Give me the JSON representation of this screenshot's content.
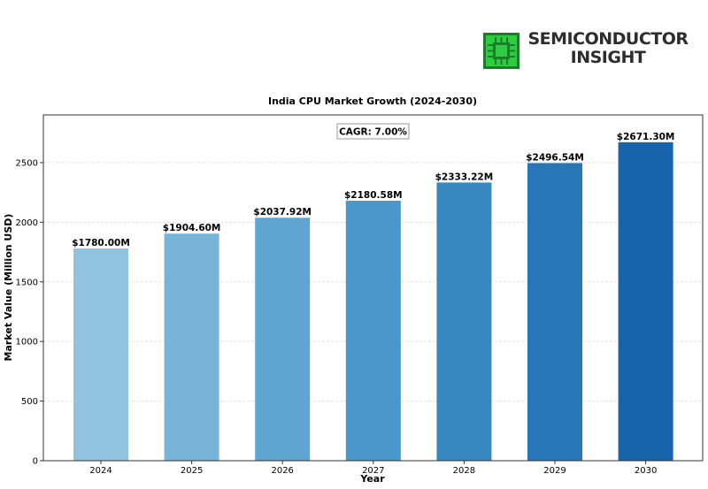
{
  "brand": {
    "line1": "SEMICONDUCTOR",
    "line2": "INSIGHT",
    "mark_icon": "chip-icon",
    "mark_color": "#2ecc40"
  },
  "chart_data": {
    "type": "bar",
    "title": "India CPU Market Growth (2024-2030)",
    "xlabel": "Year",
    "ylabel": "Market Value (Million USD)",
    "categories": [
      "2024",
      "2025",
      "2026",
      "2027",
      "2028",
      "2029",
      "2030"
    ],
    "values": [
      1780.0,
      1904.6,
      2037.92,
      2180.58,
      2333.22,
      2496.54,
      2671.3
    ],
    "data_labels": [
      "$1780.00M",
      "$1904.60M",
      "$2037.92M",
      "$2180.58M",
      "$2333.22M",
      "$2496.54M",
      "$2671.30M"
    ],
    "ylim": [
      0,
      2900
    ],
    "yticks": [
      0,
      500,
      1000,
      1500,
      2000,
      2500
    ],
    "grid": true,
    "annotation": "CAGR: 7.00%",
    "bar_colors": [
      "#92c3de",
      "#78b4d8",
      "#5fa5d1",
      "#4a98cb",
      "#3787c0",
      "#2676b8",
      "#1764ab"
    ]
  }
}
